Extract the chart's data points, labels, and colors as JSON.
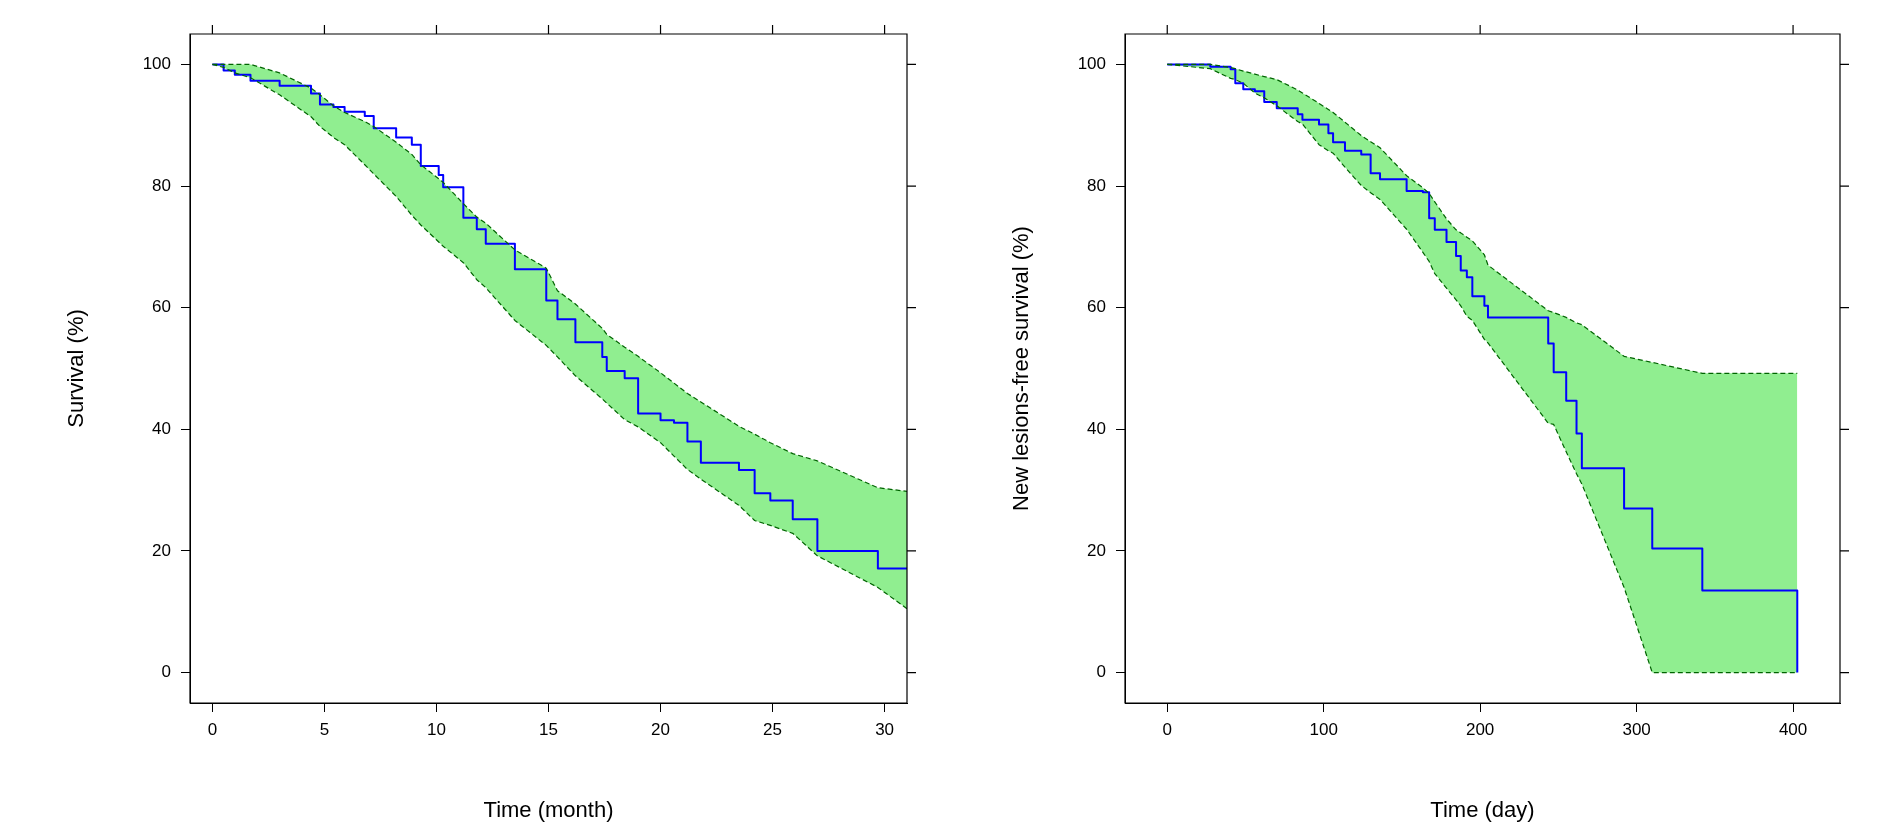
{
  "chart_data": [
    {
      "type": "step",
      "xlabel": "Time (month)",
      "ylabel": "Survival (%)",
      "xlim": [
        -1,
        31
      ],
      "ylim": [
        -5,
        105
      ],
      "xticks": [
        0,
        5,
        10,
        15,
        20,
        25,
        30
      ],
      "yticks": [
        0,
        20,
        40,
        60,
        80,
        100
      ],
      "marker": "none",
      "series": [
        {
          "color": "#0000ff",
          "x": [
            0,
            0.5,
            1.0,
            1.7,
            3.0,
            4.4,
            4.8,
            5.4,
            5.9,
            6.8,
            7.2,
            8.2,
            8.9,
            9.3,
            10.1,
            10.3,
            11.2,
            11.8,
            12.2,
            13.5,
            14.9,
            15.4,
            16.2,
            17.4,
            17.6,
            18.4,
            19.0,
            20.0,
            20.6,
            21.2,
            21.8,
            23.5,
            24.2,
            24.9,
            25.9,
            27.0,
            29.7,
            31
          ],
          "values": [
            100,
            99,
            98.3,
            97.3,
            96.5,
            95.2,
            93.4,
            93.0,
            92.2,
            91.5,
            89.5,
            88.0,
            86.8,
            83.3,
            81.8,
            79.8,
            74.8,
            72.9,
            70.5,
            66.3,
            61.2,
            58.1,
            54.3,
            51.9,
            49.6,
            48.4,
            42.6,
            41.5,
            41.1,
            38.0,
            34.5,
            33.3,
            29.5,
            28.3,
            25.2,
            20.0,
            17.1,
            17.1
          ],
          "upper": [
            100,
            100,
            100,
            100,
            98.6,
            96.1,
            95,
            93.2,
            92.1,
            90.6,
            89.8,
            87.2,
            85.2,
            83.5,
            81.2,
            80.6,
            77.1,
            74.9,
            73.9,
            69.5,
            66.5,
            62.8,
            60.6,
            56.6,
            55.6,
            53.5,
            52,
            49.3,
            47.6,
            45.9,
            44.5,
            40.5,
            39.2,
            37.8,
            36,
            34.8,
            30.4,
            29.8
          ],
          "lower": [
            100,
            99.5,
            98.6,
            97.8,
            95,
            91.4,
            89.8,
            88,
            86.8,
            83.5,
            82,
            78.3,
            75.2,
            73.6,
            70.8,
            70.1,
            67.4,
            64.6,
            63.3,
            57.9,
            53.8,
            51.9,
            48.8,
            45,
            44.3,
            41.6,
            40.4,
            37.8,
            35.6,
            33.4,
            31.8,
            27.5,
            25,
            24.2,
            22.9,
            19.2,
            14,
            10.5
          ]
        },
        {
          "type": "line",
          "color": "#006400",
          "line_style": "dashed",
          "x": [
            0,
            0.5,
            1.0,
            1.7,
            3.0,
            4.4,
            4.8,
            5.4,
            5.9,
            6.8,
            7.2,
            8.2,
            8.9,
            9.3,
            10.1,
            10.3,
            11.2,
            11.8,
            12.2,
            13.5,
            14.9,
            15.4,
            16.2,
            17.4,
            17.6,
            18.4,
            19.0,
            20.0,
            20.6,
            21.2,
            21.8,
            23.5,
            24.2,
            24.9,
            25.9,
            27.0,
            29.7,
            31
          ],
          "values": [
            100,
            100,
            100,
            100,
            98.6,
            96.1,
            95,
            93.2,
            92.1,
            90.6,
            89.8,
            87.2,
            85.2,
            83.5,
            81.2,
            80.6,
            77.1,
            74.9,
            73.9,
            69.5,
            66.5,
            62.8,
            60.6,
            56.6,
            55.6,
            53.5,
            52,
            49.3,
            47.6,
            45.9,
            44.5,
            40.5,
            39.2,
            37.8,
            36,
            34.8,
            30.4,
            29.8
          ]
        },
        {
          "type": "line",
          "color": "#006400",
          "line_style": "dashed",
          "x": [
            0,
            0.5,
            1.0,
            1.7,
            3.0,
            4.4,
            4.8,
            5.4,
            5.9,
            6.8,
            7.2,
            8.2,
            8.9,
            9.3,
            10.1,
            10.3,
            11.2,
            11.8,
            12.2,
            13.5,
            14.9,
            15.4,
            16.2,
            17.4,
            17.6,
            18.4,
            19.0,
            20.0,
            20.6,
            21.2,
            21.8,
            23.5,
            24.2,
            24.9,
            25.9,
            27.0,
            29.7,
            31
          ],
          "values": [
            100,
            99.5,
            98.6,
            97.8,
            95,
            91.4,
            89.8,
            88,
            86.8,
            83.5,
            82,
            78.3,
            75.2,
            73.6,
            70.8,
            70.1,
            67.4,
            64.6,
            63.3,
            57.9,
            53.8,
            51.9,
            48.8,
            45,
            44.3,
            41.6,
            40.4,
            37.8,
            35.6,
            33.4,
            31.8,
            27.5,
            25,
            24.2,
            22.9,
            19.2,
            14,
            10.5
          ]
        }
      ]
    },
    {
      "type": "step",
      "xlabel": "Time (day)",
      "ylabel": "New lesions-free survival (%)",
      "xlim": [
        -27,
        430
      ],
      "ylim": [
        -5,
        105
      ],
      "xticks": [
        0,
        100,
        200,
        300,
        400
      ],
      "yticks": [
        0,
        20,
        40,
        60,
        80,
        100
      ],
      "marker": "none",
      "series": [
        {
          "color": "#0000ff",
          "x": [
            0,
            27.5,
            40.5,
            43.5,
            48.6,
            56,
            62,
            70,
            83.4,
            86.4,
            97,
            103,
            106,
            113.6,
            124,
            130,
            136,
            153,
            163.4,
            167.4,
            171,
            178.5,
            184.6,
            187.6,
            191.5,
            195,
            202.7,
            205,
            243.5,
            247,
            255,
            261.6,
            265,
            292,
            310,
            342,
            402.7
          ],
          "values": [
            100,
            99.6,
            99.2,
            96.9,
            95.9,
            95.6,
            93.8,
            92.8,
            91.8,
            90.9,
            90.1,
            88.7,
            87.2,
            85.8,
            85.2,
            82.1,
            81.1,
            79.2,
            79.0,
            74.7,
            72.8,
            70.8,
            68.5,
            66.1,
            65.0,
            61.9,
            60.3,
            58.4,
            54.1,
            49.4,
            44.7,
            39.3,
            33.6,
            27.0,
            20.4,
            13.5,
            0
          ],
          "upper": [
            100,
            100,
            99.5,
            99.3,
            98.9,
            98.4,
            98,
            97.5,
            95.8,
            95.3,
            93.6,
            92.6,
            92.1,
            90.5,
            88.3,
            87.3,
            86.3,
            81.7,
            79.7,
            78.8,
            77.4,
            74.6,
            72.8,
            72.3,
            71.6,
            71,
            68.7,
            67,
            59.5,
            59.2,
            58.4,
            57.5,
            57.2,
            52,
            51,
            49.2,
            49.2
          ],
          "lower": [
            100,
            99.3,
            97.7,
            97.5,
            96.9,
            95.3,
            94.5,
            93.2,
            90.6,
            90.2,
            86.8,
            85.8,
            85.4,
            83.1,
            80.1,
            78.9,
            77.8,
            72.9,
            69.1,
            67.6,
            65.6,
            63.2,
            61.3,
            60.3,
            58.6,
            57.9,
            54.8,
            54.2,
            41,
            40.8,
            36.3,
            32.7,
            31,
            14,
            0,
            0,
            0
          ]
        },
        {
          "type": "line",
          "color": "#006400",
          "line_style": "dashed",
          "x": [
            0,
            27.5,
            40.5,
            43.5,
            48.6,
            56,
            62,
            70,
            83.4,
            86.4,
            97,
            103,
            106,
            113.6,
            124,
            130,
            136,
            153,
            163.4,
            167.4,
            171,
            178.5,
            184.6,
            187.6,
            191.5,
            195,
            202.7,
            205,
            243.5,
            247,
            255,
            261.6,
            265,
            292,
            310,
            342,
            402.7
          ],
          "values": [
            100,
            100,
            99.5,
            99.3,
            98.9,
            98.4,
            98,
            97.5,
            95.8,
            95.3,
            93.6,
            92.6,
            92.1,
            90.5,
            88.3,
            87.3,
            86.3,
            81.7,
            79.7,
            78.8,
            77.4,
            74.6,
            72.8,
            72.3,
            71.6,
            71,
            68.7,
            67,
            59.5,
            59.2,
            58.4,
            57.5,
            57.2,
            52,
            51,
            49.2,
            49.2
          ]
        },
        {
          "type": "line",
          "color": "#006400",
          "line_style": "dashed",
          "x": [
            0,
            27.5,
            40.5,
            43.5,
            48.6,
            56,
            62,
            70,
            83.4,
            86.4,
            97,
            103,
            106,
            113.6,
            124,
            130,
            136,
            153,
            163.4,
            167.4,
            171,
            178.5,
            184.6,
            187.6,
            191.5,
            195,
            202.7,
            205,
            243.5,
            247,
            255,
            261.6,
            265,
            292,
            310,
            342,
            402.7
          ],
          "values": [
            100,
            99.3,
            97.7,
            97.5,
            96.9,
            95.3,
            94.5,
            93.2,
            90.6,
            90.2,
            86.8,
            85.8,
            85.4,
            83.1,
            80.1,
            78.9,
            77.8,
            72.9,
            69.1,
            67.6,
            65.6,
            63.2,
            61.3,
            60.3,
            58.6,
            57.9,
            54.8,
            54.2,
            41,
            40.8,
            36.3,
            32.7,
            31,
            14,
            0,
            0,
            0
          ]
        }
      ]
    }
  ]
}
